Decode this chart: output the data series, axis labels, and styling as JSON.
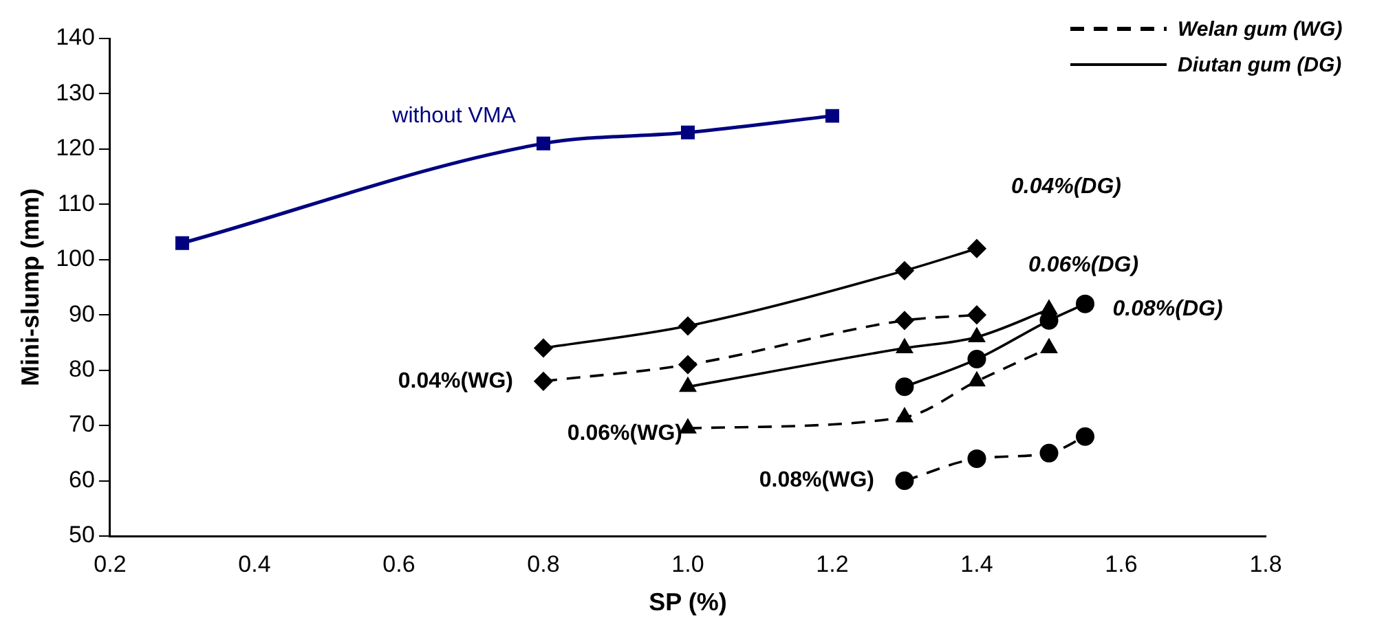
{
  "chart_data": {
    "type": "line",
    "xlabel": "SP (%)",
    "ylabel": "Mini-slump (mm)",
    "xlim": [
      0.2,
      1.8
    ],
    "xticks": [
      {
        "value": 0.2,
        "label": "0.2"
      },
      {
        "value": 0.4,
        "label": "0.4"
      },
      {
        "value": 0.6,
        "label": "0.6"
      },
      {
        "value": 0.8,
        "label": "0.8"
      },
      {
        "value": 1.0,
        "label": "1.0"
      },
      {
        "value": 1.2,
        "label": "1.2"
      },
      {
        "value": 1.4,
        "label": "1.4"
      },
      {
        "value": 1.6,
        "label": "1.6"
      },
      {
        "value": 1.8,
        "label": "1.8"
      }
    ],
    "ylim": [
      50,
      140
    ],
    "yticks": [
      50,
      60,
      70,
      80,
      90,
      100,
      110,
      120,
      130,
      140
    ],
    "grid": false,
    "annotations": [
      "Welan gum (WG)",
      "Diutan gum (DG)"
    ],
    "series": [
      {
        "name": "without VMA",
        "color": "#000080",
        "marker": "square",
        "line_style": "solid",
        "x": [
          0.3,
          0.8,
          1.0,
          1.2
        ],
        "values": [
          103,
          121,
          123,
          126
        ]
      },
      {
        "name": "0.04%(DG)",
        "color": "#000000",
        "marker": "diamond",
        "line_style": "solid",
        "x": [
          0.8,
          1.0,
          1.3,
          1.4
        ],
        "values": [
          84,
          88,
          98,
          102
        ]
      },
      {
        "name": "0.04%(WG)",
        "color": "#000000",
        "marker": "diamond",
        "line_style": "dashed",
        "x": [
          0.8,
          1.0,
          1.3,
          1.4
        ],
        "values": [
          78,
          81,
          89,
          90
        ]
      },
      {
        "name": "0.06%(DG)",
        "color": "#000000",
        "marker": "triangle",
        "line_style": "solid",
        "x": [
          1.0,
          1.3,
          1.4,
          1.5
        ],
        "values": [
          77,
          84,
          86,
          91
        ]
      },
      {
        "name": "0.06%(WG)",
        "color": "#000000",
        "marker": "triangle",
        "line_style": "dashed",
        "x": [
          1.0,
          1.3,
          1.4,
          1.5
        ],
        "values": [
          69.5,
          71.5,
          78,
          84
        ]
      },
      {
        "name": "0.08%(DG)",
        "color": "#000000",
        "marker": "circle",
        "line_style": "solid",
        "x": [
          1.3,
          1.4,
          1.5,
          1.55
        ],
        "values": [
          77,
          82,
          89,
          92
        ]
      },
      {
        "name": "0.08%(WG)",
        "color": "#000000",
        "marker": "circle",
        "line_style": "dashed",
        "x": [
          1.3,
          1.4,
          1.5,
          1.55
        ],
        "values": [
          60,
          64,
          65,
          68
        ]
      }
    ]
  }
}
